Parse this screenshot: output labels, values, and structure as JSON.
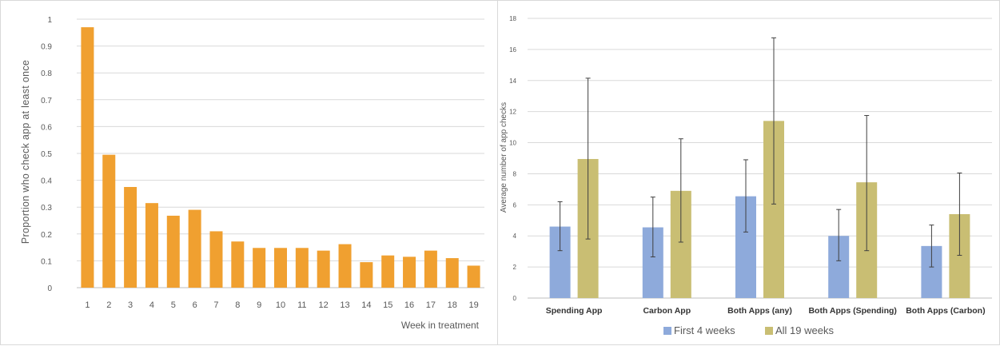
{
  "chart_data": [
    {
      "type": "bar",
      "title": "",
      "xlabel": "Week in treatment",
      "ylabel": "Proportion who check app at least once",
      "ylim": [
        0,
        1
      ],
      "yticks": [
        "0",
        "0.1",
        "0.2",
        "0.3",
        "0.4",
        "0.5",
        "0.6",
        "0.7",
        "0.8",
        "0.9",
        "1"
      ],
      "categories": [
        "1",
        "2",
        "3",
        "4",
        "5",
        "6",
        "7",
        "8",
        "9",
        "10",
        "11",
        "12",
        "13",
        "14",
        "15",
        "16",
        "17",
        "18",
        "19"
      ],
      "values": [
        0.97,
        0.495,
        0.375,
        0.315,
        0.268,
        0.29,
        0.21,
        0.172,
        0.148,
        0.148,
        0.148,
        0.138,
        0.162,
        0.095,
        0.12,
        0.115,
        0.138,
        0.11,
        0.082
      ],
      "grid": true,
      "colors": {
        "bar": "#F0A030",
        "grid": "#d9d9d9",
        "axis": "#bfbfbf",
        "text": "#595959"
      }
    },
    {
      "type": "bar",
      "title": "",
      "xlabel": "",
      "ylabel": "Average number of app checks",
      "ylim": [
        0,
        18
      ],
      "yticks": [
        "0",
        "2",
        "4",
        "6",
        "8",
        "10",
        "12",
        "14",
        "16",
        "18"
      ],
      "categories": [
        "Spending App",
        "Carbon App",
        "Both Apps (any)",
        "Both Apps (Spending)",
        "Both Apps (Carbon)"
      ],
      "series": [
        {
          "name": "First 4 weeks",
          "values": [
            4.6,
            4.55,
            6.55,
            4.0,
            3.35
          ],
          "err_low": [
            3.05,
            2.65,
            4.25,
            2.4,
            2.0
          ],
          "err_high": [
            6.2,
            6.5,
            8.9,
            5.7,
            4.7
          ]
        },
        {
          "name": "All 19 weeks",
          "values": [
            8.95,
            6.9,
            11.4,
            7.45,
            5.4
          ],
          "err_low": [
            3.8,
            3.6,
            6.05,
            3.05,
            2.75
          ],
          "err_high": [
            14.15,
            10.25,
            16.75,
            11.75,
            8.05
          ]
        }
      ],
      "legend": "bottom",
      "grid": true,
      "colors": {
        "series": [
          "#8EAADB",
          "#C9BE73"
        ],
        "grid": "#d9d9d9",
        "axis": "#bfbfbf",
        "text": "#595959",
        "label": "#333333"
      }
    }
  ]
}
